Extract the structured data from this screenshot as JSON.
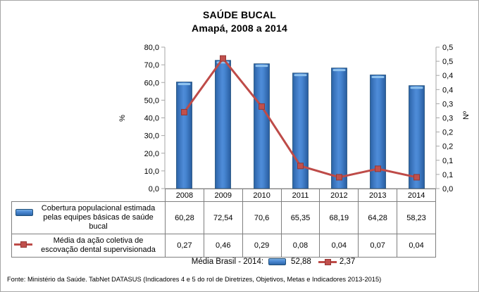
{
  "title": {
    "line1": "SAÚDE BUCAL",
    "line2": "Amapá, 2008 a 2014"
  },
  "chart_data": {
    "type": "bar",
    "title": "SAÚDE BUCAL",
    "subtitle": "Amapá, 2008 a 2014",
    "categories": [
      "2008",
      "2009",
      "2010",
      "2011",
      "2012",
      "2013",
      "2014"
    ],
    "series": [
      {
        "name": "Cobertura populacional estimada pelas equipes básicas de saúde bucal",
        "type": "bar",
        "axis": "left",
        "color": "#3d7cc9",
        "values": [
          60.28,
          72.54,
          70.6,
          65.35,
          68.19,
          64.28,
          58.23
        ],
        "display_values": [
          "60,28",
          "72,54",
          "70,6",
          "65,35",
          "68,19",
          "64,28",
          "58,23"
        ]
      },
      {
        "name": "Média da ação coletiva de escovação dental supervisionada",
        "type": "line",
        "axis": "right",
        "color": "#be4b48",
        "values": [
          0.27,
          0.46,
          0.29,
          0.08,
          0.04,
          0.07,
          0.04
        ],
        "display_values": [
          "0,27",
          "0,46",
          "0,29",
          "0,08",
          "0,04",
          "0,07",
          "0,04"
        ]
      }
    ],
    "left_axis": {
      "title": "%",
      "min": 0,
      "max": 80,
      "tick_step": 10,
      "tick_labels": [
        "0,0",
        "10,0",
        "20,0",
        "30,0",
        "40,0",
        "50,0",
        "60,0",
        "70,0",
        "80,0"
      ]
    },
    "right_axis": {
      "title": "Nº",
      "min": 0,
      "max": 0.5,
      "tick_step": 0.05,
      "tick_labels": [
        "0,0",
        "0,1",
        "0,1",
        "0,2",
        "0,2",
        "0,3",
        "0,3",
        "0,4",
        "0,4",
        "0,5",
        "0,5"
      ]
    },
    "grid": false,
    "legend_position": "table-below"
  },
  "table": {
    "row_labels": [
      "Cobertura populacional estimada pelas equipes básicas de saúde bucal",
      "Média da ação coletiva de escovação dental supervisionada"
    ]
  },
  "media_brasil": {
    "label": "Média Brasil - 2014:",
    "bar_value": "52,88",
    "line_value": "2,37"
  },
  "footer": {
    "source": "Fonte: Ministério da Saúde. TabNet DATASUS (Indicadores 4 e 5 do rol de Diretrizes, Objetivos, Metas e Indicadores 2013-2015)"
  },
  "colors": {
    "bar_fill": "#3d7cc9",
    "bar_border": "#1e4e79",
    "line": "#be4b48",
    "marker": "#c0504d",
    "axis": "#a6a6a6",
    "table_border": "#7f7f7f"
  }
}
